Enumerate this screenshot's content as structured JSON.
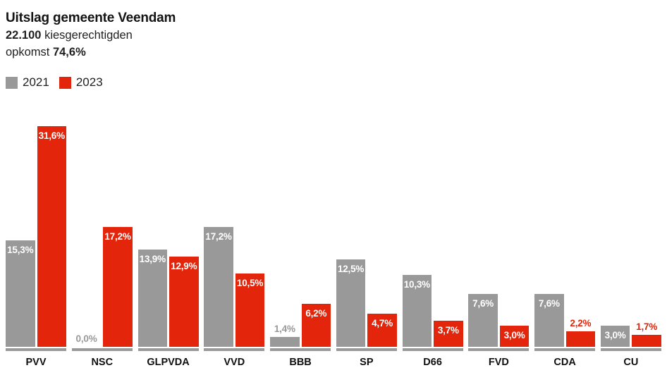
{
  "header": {
    "title": "Uitslag gemeente Veendam",
    "electorate_value": "22.100",
    "electorate_label": "kiesgerechtigden",
    "turnout_label": "opkomst",
    "turnout_value": "74,6%"
  },
  "legend": {
    "items": [
      {
        "label": "2021",
        "color": "#999999"
      },
      {
        "label": "2023",
        "color": "#e2250b"
      }
    ]
  },
  "colors": {
    "bar_2021": "#999999",
    "bar_2023": "#e2250b",
    "label_inside": "#ffffff",
    "baseline": "#999999",
    "text": "#141414"
  },
  "chart_data": {
    "type": "bar",
    "title": "Uitslag gemeente Veendam",
    "xlabel": "",
    "ylabel": "",
    "categories": [
      "PVV",
      "NSC",
      "GLPVDA",
      "VVD",
      "BBB",
      "SP",
      "D66",
      "FVD",
      "CDA",
      "CU"
    ],
    "series": [
      {
        "name": "2021",
        "color": "#999999",
        "values": [
          15.3,
          0.0,
          13.9,
          17.2,
          1.4,
          12.5,
          10.3,
          7.6,
          7.6,
          3.0
        ],
        "labels": [
          "15,3%",
          "0,0%",
          "13,9%",
          "17,2%",
          "1,4%",
          "12,5%",
          "10,3%",
          "7,6%",
          "7,6%",
          "3,0%"
        ]
      },
      {
        "name": "2023",
        "color": "#e2250b",
        "values": [
          31.6,
          17.2,
          12.9,
          10.5,
          6.2,
          4.7,
          3.7,
          3.0,
          2.2,
          1.7
        ],
        "labels": [
          "31,6%",
          "17,2%",
          "12,9%",
          "10,5%",
          "6,2%",
          "4,7%",
          "3,7%",
          "3,0%",
          "2,2%",
          "1,7%"
        ]
      }
    ],
    "ylim": [
      0,
      33.5
    ],
    "value_suffix": "%",
    "grid": false,
    "legend_position": "top-left",
    "label_placement_rule": "inside-top when bar tall enough, otherwise above bar in series color"
  }
}
